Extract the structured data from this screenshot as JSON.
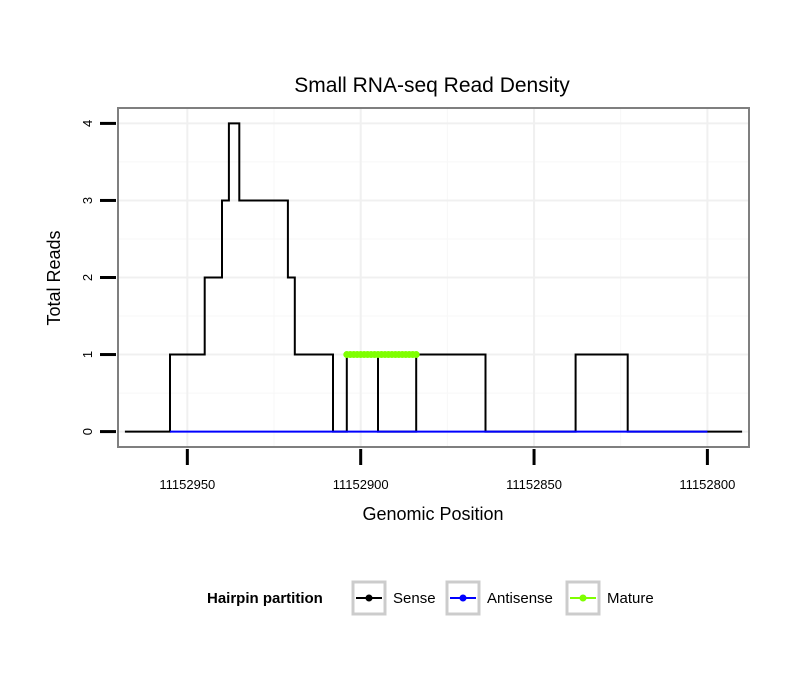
{
  "chart_data": {
    "type": "line",
    "title": "Small RNA-seq Read Density",
    "xlabel": "Genomic Position",
    "ylabel": "Total Reads",
    "x_reversed": true,
    "xlim": [
      11152970,
      11152788
    ],
    "ylim": [
      -0.2,
      4.2
    ],
    "x_ticks": [
      11152950,
      11152900,
      11152850,
      11152800
    ],
    "x_tick_labels": [
      "11152950",
      "11152900",
      "11152850",
      "11152800"
    ],
    "y_ticks": [
      0,
      1,
      2,
      3,
      4
    ],
    "y_tick_labels": [
      "0",
      "1",
      "2",
      "3",
      "4"
    ],
    "grid": true,
    "legend_title": "Hairpin partition",
    "legend_position": "bottom",
    "series": [
      {
        "name": "Sense",
        "color": "#000000",
        "x": [
          11152968,
          11152955,
          11152955,
          11152945,
          11152945,
          11152940,
          11152940,
          11152938,
          11152938,
          11152935,
          11152935,
          11152931,
          11152931,
          11152921,
          11152921,
          11152919,
          11152919,
          11152917,
          11152917,
          11152908,
          11152908,
          11152904,
          11152904,
          11152895,
          11152895,
          11152884,
          11152884,
          11152864,
          11152864,
          11152838,
          11152838,
          11152823,
          11152823,
          11152800,
          11152800,
          11152790
        ],
        "y": [
          0,
          0,
          1,
          1,
          2,
          2,
          3,
          3,
          4,
          4,
          3,
          3,
          3,
          3,
          2,
          2,
          1,
          1,
          1,
          1,
          0,
          0,
          1,
          1,
          0,
          0,
          1,
          1,
          0,
          0,
          1,
          1,
          0,
          0,
          0,
          0
        ]
      },
      {
        "name": "Antisense",
        "color": "#0000ff",
        "x": [
          11152955,
          11152800
        ],
        "y": [
          0,
          0
        ]
      },
      {
        "name": "Mature",
        "color": "#7fff00",
        "x": [
          11152904,
          11152884
        ],
        "y": [
          1,
          1
        ]
      }
    ]
  }
}
